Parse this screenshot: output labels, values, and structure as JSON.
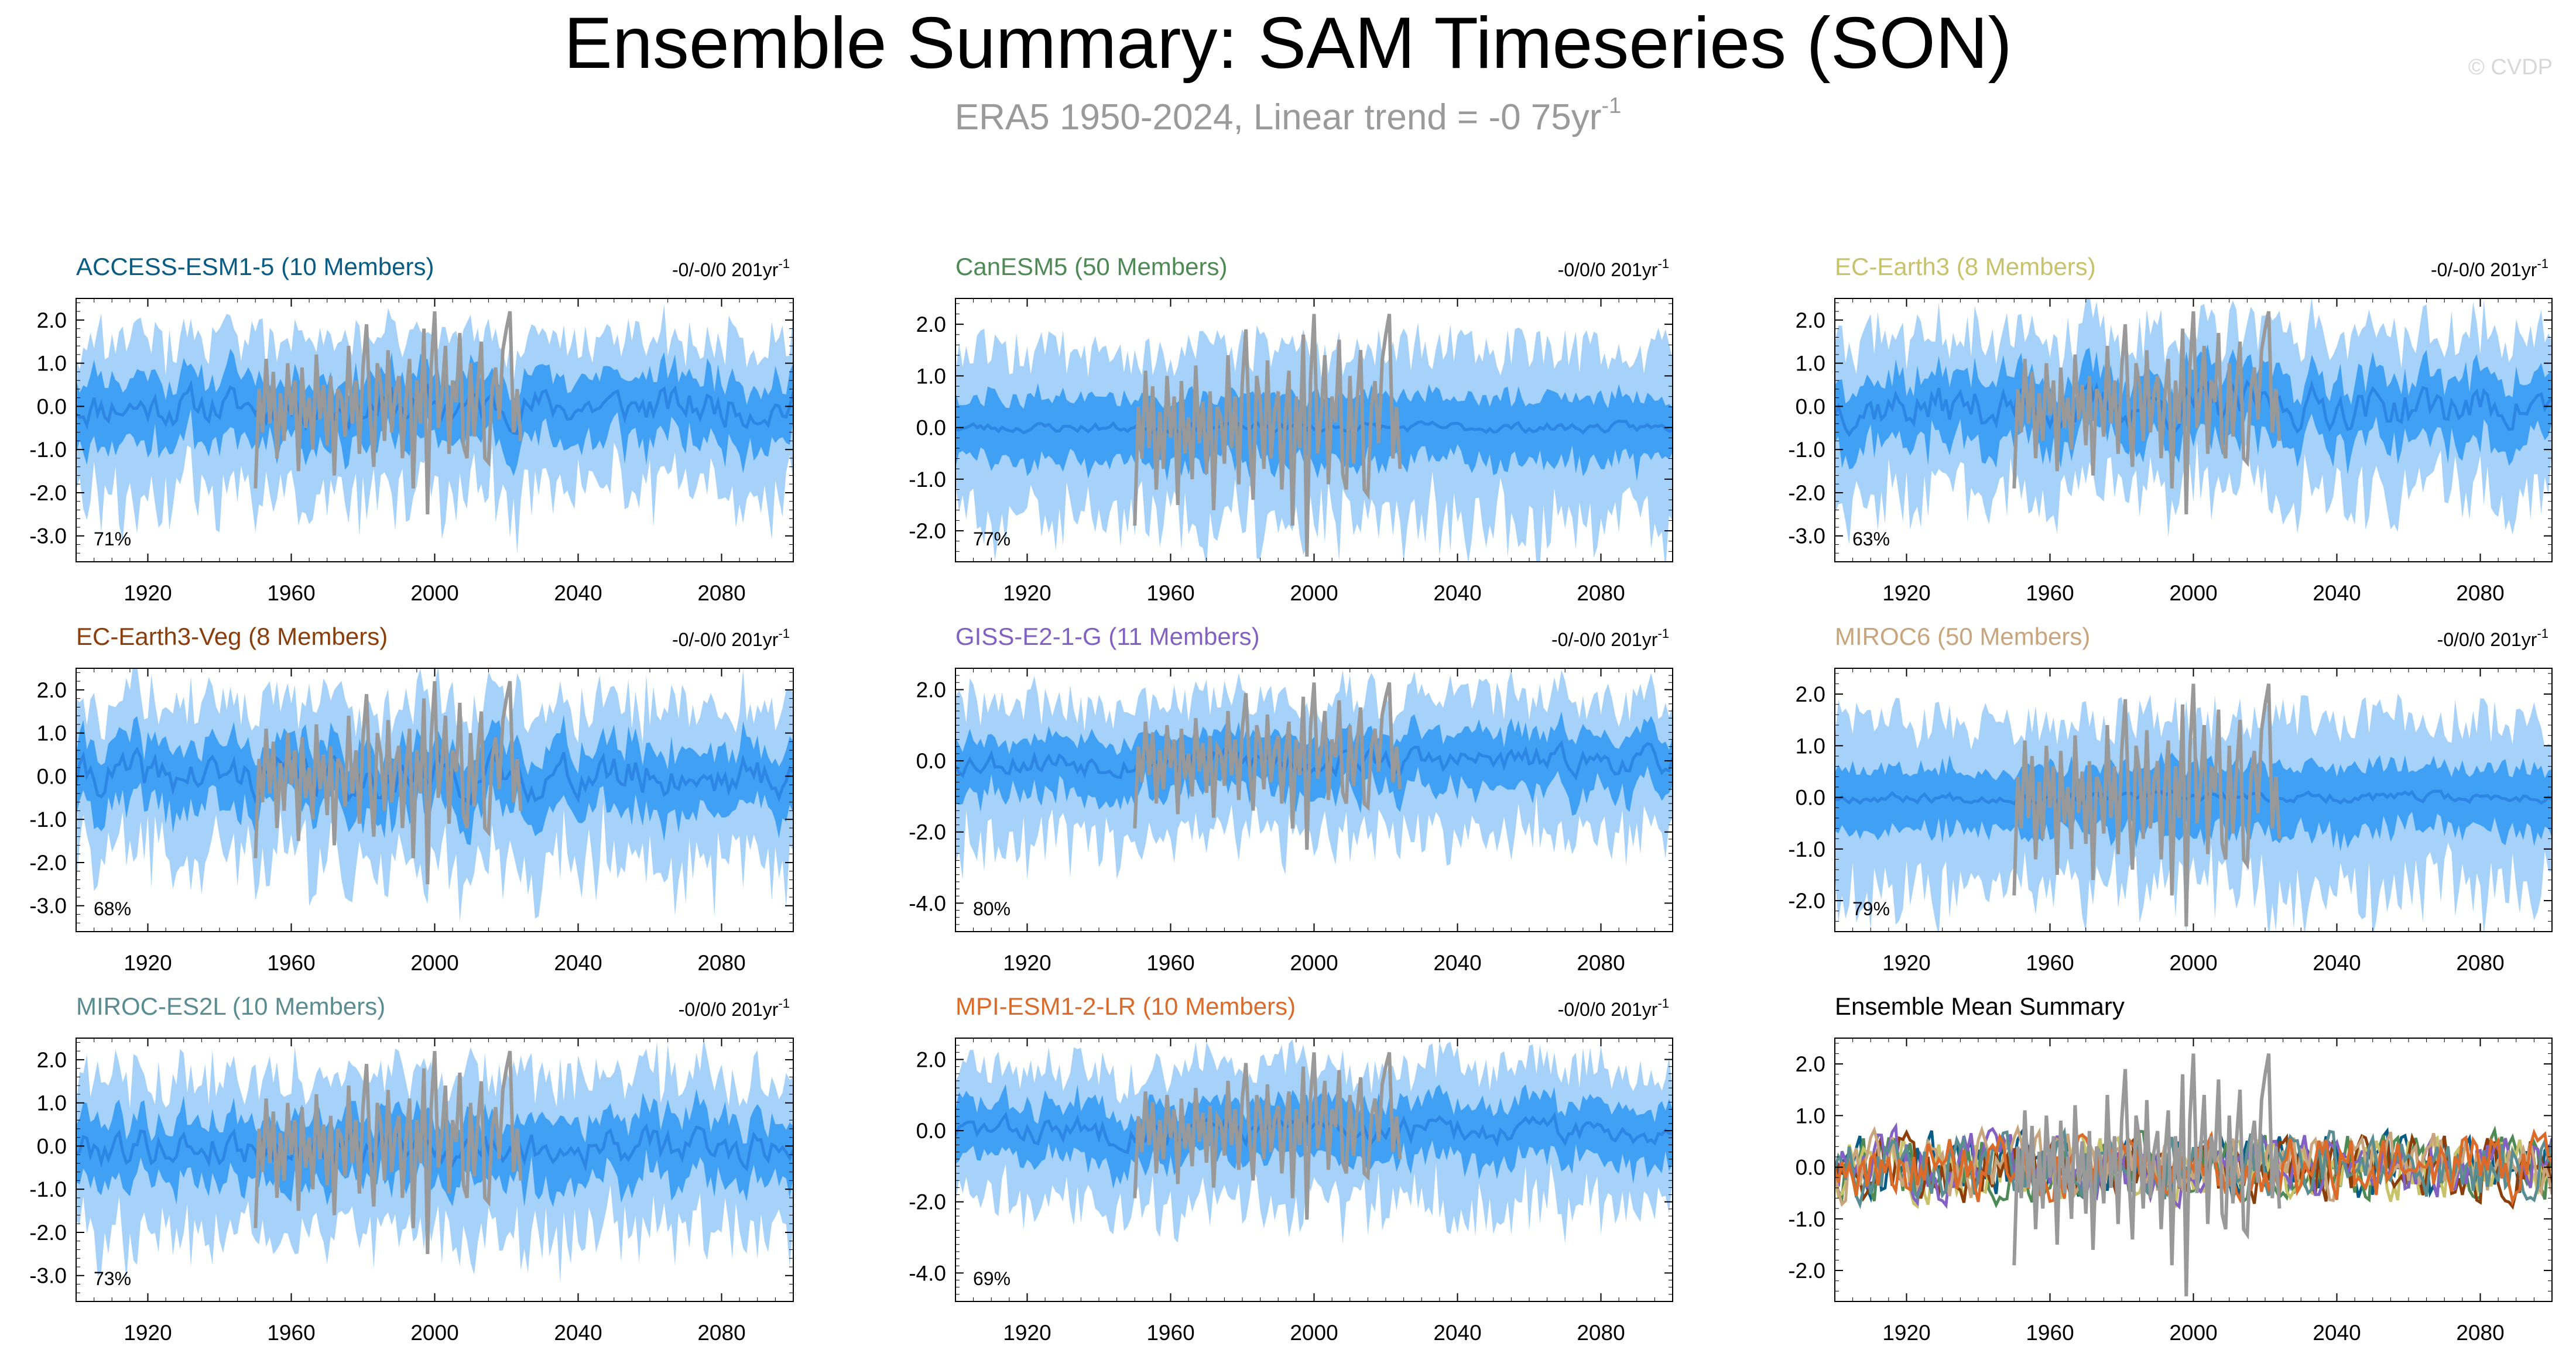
{
  "title": "Ensemble Summary: SAM Timeseries (SON)",
  "subtitle": {
    "text": "ERA5 1950-2024, Linear trend = -0 75yr",
    "superscript": "-1"
  },
  "watermark": "© CVDP",
  "chart_data": {
    "type": "line",
    "x_axis": {
      "range": [
        1900,
        2100
      ],
      "tick_labels": [
        "1920",
        "1960",
        "2000",
        "2040",
        "2080"
      ]
    },
    "observation": {
      "source": "ERA5",
      "years": [
        1950,
        2024
      ],
      "color": "#999999",
      "values": [
        -1.9,
        0.4,
        -0.6,
        1.1,
        -0.4,
        0.8,
        -1.2,
        0.3,
        -0.8,
        1.0,
        -0.2,
        0.6,
        -1.5,
        0.9,
        -0.5,
        0.2,
        -1.0,
        1.2,
        -0.3,
        0.5,
        -0.9,
        0.7,
        -1.6,
        0.4,
        0.2,
        -0.7,
        1.4,
        -0.4,
        0.6,
        -1.1,
        0.9,
        1.9,
        -0.2,
        -1.4,
        1.0,
        0.5,
        -0.8,
        1.3,
        -0.6,
        0.3,
        0.7,
        -1.2,
        0.2,
        1.1,
        -1.9,
        0.6,
        -0.4,
        1.8,
        -2.5,
        0.9,
        2.2,
        -0.5,
        0.3,
        1.4,
        -1.1,
        0.6,
        0.1,
        1.7,
        -0.9,
        -1.2,
        1.0,
        -0.7,
        0.5,
        1.5,
        -1.2,
        -1.3,
        0.4,
        0.9,
        -0.3,
        1.3,
        1.8,
        2.2,
        -0.6,
        0.4,
        -0.8
      ]
    },
    "panels": [
      {
        "title": "ACCESS-ESM1-5 (10 Members)",
        "color": "#075C85",
        "trend": "-0/-0/0 201yr",
        "trend_sup": "-1",
        "ylim": [
          -3.6,
          2.5
        ],
        "yticks": [
          "2.0",
          "1.0",
          "0.0",
          "-1.0",
          "-2.0",
          "-3.0"
        ],
        "ytick_values": [
          2,
          1,
          0,
          -1,
          -2,
          -3
        ],
        "percent": "71%",
        "inner": 0.7,
        "outer": 1.45,
        "amp": 0.35,
        "seed": 11
      },
      {
        "title": "CanESM5 (50 Members)",
        "color": "#4E8A53",
        "trend": "-0/0/0 201yr",
        "trend_sup": "-1",
        "ylim": [
          -2.6,
          2.5
        ],
        "yticks": [
          "2.0",
          "1.0",
          "0.0",
          "-1.0",
          "-2.0"
        ],
        "ytick_values": [
          2,
          1,
          0,
          -1,
          -2
        ],
        "percent": "77%",
        "inner": 0.6,
        "outer": 1.35,
        "amp": 0.08,
        "seed": 23
      },
      {
        "title": "EC-Earth3 (8 Members)",
        "color": "#C8C26A",
        "trend": "-0/-0/0 201yr",
        "trend_sup": "-1",
        "ylim": [
          -3.6,
          2.5
        ],
        "yticks": [
          "2.0",
          "1.0",
          "0.0",
          "-1.0",
          "-2.0",
          "-3.0"
        ],
        "ytick_values": [
          2,
          1,
          0,
          -1,
          -2,
          -3
        ],
        "percent": "63%",
        "inner": 0.7,
        "outer": 1.5,
        "amp": 0.4,
        "seed": 37
      },
      {
        "title": "EC-Earth3-Veg (8 Members)",
        "color": "#8B3D0A",
        "trend": "-0/-0/0 201yr",
        "trend_sup": "-1",
        "ylim": [
          -3.6,
          2.5
        ],
        "yticks": [
          "2.0",
          "1.0",
          "0.0",
          "-1.0",
          "-2.0",
          "-3.0"
        ],
        "ytick_values": [
          2,
          1,
          0,
          -1,
          -2,
          -3
        ],
        "percent": "68%",
        "inner": 0.7,
        "outer": 1.5,
        "amp": 0.4,
        "seed": 41
      },
      {
        "title": "GISS-E2-1-G (11 Members)",
        "color": "#8361C3",
        "trend": "-0/-0/0 201yr",
        "trend_sup": "-1",
        "ylim": [
          -4.8,
          2.6
        ],
        "yticks": [
          "2.0",
          "0.0",
          "-2.0",
          "-4.0"
        ],
        "ytick_values": [
          2,
          0,
          -2,
          -4
        ],
        "percent": "80%",
        "inner": 0.75,
        "outer": 1.6,
        "amp": 0.3,
        "seed": 53
      },
      {
        "title": "MIROC6 (50 Members)",
        "color": "#C9A57D",
        "trend": "-0/0/0 201yr",
        "trend_sup": "-1",
        "ylim": [
          -2.6,
          2.5
        ],
        "yticks": [
          "2.0",
          "1.0",
          "0.0",
          "-1.0",
          "-2.0"
        ],
        "ytick_values": [
          2,
          1,
          0,
          -1,
          -2
        ],
        "percent": "79%",
        "inner": 0.6,
        "outer": 1.35,
        "amp": 0.08,
        "seed": 67
      },
      {
        "title": "MIROC-ES2L (10 Members)",
        "color": "#5A8D91",
        "trend": "-0/0/0 201yr",
        "trend_sup": "-1",
        "ylim": [
          -3.6,
          2.5
        ],
        "yticks": [
          "2.0",
          "1.0",
          "0.0",
          "-1.0",
          "-2.0",
          "-3.0"
        ],
        "ytick_values": [
          2,
          1,
          0,
          -1,
          -2,
          -3
        ],
        "percent": "73%",
        "inner": 0.7,
        "outer": 1.5,
        "amp": 0.35,
        "seed": 79
      },
      {
        "title": "MPI-ESM1-2-LR (10 Members)",
        "color": "#DC6A29",
        "trend": "-0/0/0 201yr",
        "trend_sup": "-1",
        "ylim": [
          -4.8,
          2.6
        ],
        "yticks": [
          "2.0",
          "0.0",
          "-2.0",
          "-4.0"
        ],
        "ytick_values": [
          2,
          0,
          -2,
          -4
        ],
        "percent": "69%",
        "inner": 0.75,
        "outer": 1.6,
        "amp": 0.3,
        "seed": 83
      },
      {
        "title": "Ensemble Mean Summary",
        "color": "#000000",
        "summary": true,
        "ylim": [
          -2.6,
          2.5
        ],
        "yticks": [
          "2.0",
          "1.0",
          "0.0",
          "-1.0",
          "-2.0"
        ],
        "ytick_values": [
          2,
          1,
          0,
          -1,
          -2
        ]
      }
    ],
    "colors": {
      "outer_band": "#A6D2FA",
      "inner_band": "#3FA0F4",
      "ensemble_mean": "#2D86E5",
      "observation": "#999999"
    }
  }
}
